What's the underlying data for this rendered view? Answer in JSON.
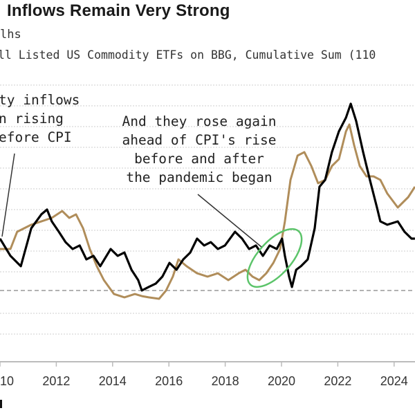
{
  "chart_data": {
    "type": "line",
    "title": "Inflows Remain Very Strong",
    "subtitle_lines": [
      "lhs",
      "ll Listed US Commodity ETFs on BBG, Cumulative Sum (110"
    ],
    "xlabel": "",
    "ylabel": "",
    "x_ticks": [
      "2010",
      "2012",
      "2014",
      "2016",
      "2018",
      "2020",
      "2022",
      "2024"
    ],
    "x_tick_years": [
      2010,
      2012,
      2014,
      2016,
      2018,
      2020,
      2022,
      2024
    ],
    "xlim": [
      2010,
      2024.74
    ],
    "grid": true,
    "reference_line": 0,
    "series": [
      {
        "color": "#000000",
        "points": [
          [
            2010.0,
            2.5
          ],
          [
            2010.37,
            1.67
          ],
          [
            2010.74,
            1.17
          ],
          [
            2011.11,
            3.0
          ],
          [
            2011.47,
            3.67
          ],
          [
            2011.67,
            3.9
          ],
          [
            2011.84,
            3.33
          ],
          [
            2012.09,
            2.83
          ],
          [
            2012.33,
            2.33
          ],
          [
            2012.58,
            2.0
          ],
          [
            2012.83,
            2.17
          ],
          [
            2013.07,
            1.5
          ],
          [
            2013.32,
            1.67
          ],
          [
            2013.56,
            1.17
          ],
          [
            2013.93,
            2.0
          ],
          [
            2014.18,
            1.67
          ],
          [
            2014.42,
            1.83
          ],
          [
            2014.67,
            1.0
          ],
          [
            2014.91,
            0.5
          ],
          [
            2015.04,
            0
          ],
          [
            2015.28,
            0.17
          ],
          [
            2015.53,
            0.33
          ],
          [
            2015.77,
            0.67
          ],
          [
            2016.02,
            1.33
          ],
          [
            2016.27,
            1.0
          ],
          [
            2016.51,
            1.5
          ],
          [
            2016.76,
            1.83
          ],
          [
            2017.0,
            2.5
          ],
          [
            2017.25,
            2.17
          ],
          [
            2017.49,
            2.33
          ],
          [
            2017.74,
            2.0
          ],
          [
            2017.99,
            2.17
          ],
          [
            2018.35,
            2.83
          ],
          [
            2018.6,
            2.5
          ],
          [
            2018.85,
            2.0
          ],
          [
            2019.09,
            2.17
          ],
          [
            2019.34,
            1.67
          ],
          [
            2019.58,
            2.17
          ],
          [
            2019.83,
            2.0
          ],
          [
            2020.02,
            2.5
          ],
          [
            2020.12,
            1.67
          ],
          [
            2020.27,
            0.67
          ],
          [
            2020.37,
            0.17
          ],
          [
            2020.52,
            1.0
          ],
          [
            2020.69,
            1.17
          ],
          [
            2020.93,
            1.5
          ],
          [
            2021.18,
            3.0
          ],
          [
            2021.35,
            5.0
          ],
          [
            2021.55,
            5.33
          ],
          [
            2021.79,
            6.67
          ],
          [
            2022.04,
            7.67
          ],
          [
            2022.29,
            8.33
          ],
          [
            2022.46,
            9.0
          ],
          [
            2022.65,
            8.17
          ],
          [
            2022.9,
            6.67
          ],
          [
            2023.14,
            5.33
          ],
          [
            2023.39,
            4.0
          ],
          [
            2023.51,
            3.33
          ],
          [
            2023.76,
            3.17
          ],
          [
            2024.13,
            3.33
          ],
          [
            2024.37,
            2.83
          ],
          [
            2024.62,
            2.5
          ],
          [
            2024.74,
            2.5
          ]
        ]
      },
      {
        "color": "#b08d5a",
        "points": [
          [
            2010.0,
            2.0
          ],
          [
            2010.37,
            2.0
          ],
          [
            2010.61,
            2.83
          ],
          [
            2010.86,
            3.0
          ],
          [
            2011.11,
            3.17
          ],
          [
            2011.47,
            3.33
          ],
          [
            2011.84,
            3.5
          ],
          [
            2012.21,
            3.83
          ],
          [
            2012.46,
            3.5
          ],
          [
            2012.7,
            3.67
          ],
          [
            2012.95,
            3.0
          ],
          [
            2013.19,
            2.0
          ],
          [
            2013.44,
            1.17
          ],
          [
            2013.69,
            0.5
          ],
          [
            2014.05,
            -0.17
          ],
          [
            2014.42,
            -0.33
          ],
          [
            2014.79,
            -0.17
          ],
          [
            2015.04,
            -0.27
          ],
          [
            2015.28,
            -0.33
          ],
          [
            2015.65,
            -0.4
          ],
          [
            2015.9,
            0
          ],
          [
            2016.14,
            0.67
          ],
          [
            2016.34,
            1.5
          ],
          [
            2016.63,
            1.17
          ],
          [
            2017.0,
            0.83
          ],
          [
            2017.37,
            0.67
          ],
          [
            2017.74,
            0.83
          ],
          [
            2018.11,
            0.5
          ],
          [
            2018.48,
            0.83
          ],
          [
            2018.72,
            1.0
          ],
          [
            2018.97,
            0.67
          ],
          [
            2019.21,
            0.5
          ],
          [
            2019.46,
            0.83
          ],
          [
            2019.71,
            1.33
          ],
          [
            2019.95,
            2.0
          ],
          [
            2020.12,
            3.33
          ],
          [
            2020.32,
            5.33
          ],
          [
            2020.57,
            6.5
          ],
          [
            2020.81,
            6.67
          ],
          [
            2021.06,
            6.0
          ],
          [
            2021.3,
            5.17
          ],
          [
            2021.55,
            5.33
          ],
          [
            2021.79,
            6.0
          ],
          [
            2022.04,
            6.33
          ],
          [
            2022.29,
            7.67
          ],
          [
            2022.41,
            8.0
          ],
          [
            2022.58,
            7.0
          ],
          [
            2022.78,
            6.0
          ],
          [
            2023.02,
            5.5
          ],
          [
            2023.27,
            5.5
          ],
          [
            2023.51,
            5.33
          ],
          [
            2023.76,
            4.67
          ],
          [
            2024.13,
            4.0
          ],
          [
            2024.5,
            4.5
          ],
          [
            2024.74,
            5.0
          ]
        ]
      }
    ],
    "annotations": [
      {
        "lines": [
          "ty inflows",
          "n rising",
          "efore CPI"
        ]
      },
      {
        "lines": [
          "And they rose again",
          "ahead of CPI's rise",
          "before and after",
          "the pandemic began"
        ]
      }
    ],
    "highlight_color": "#5cc46a"
  }
}
